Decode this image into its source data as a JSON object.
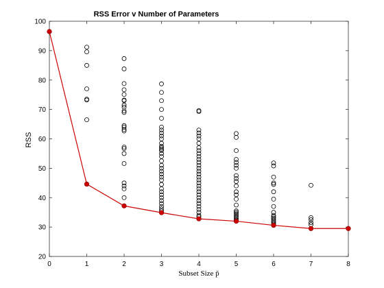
{
  "chart_data": {
    "type": "scatter",
    "title": "RSS Error v Number of Parameters",
    "xlabel": "Subset Size p̃",
    "ylabel": "RSS",
    "xlim": [
      0,
      8
    ],
    "ylim": [
      20,
      100
    ],
    "xticks": [
      "0",
      "1",
      "2",
      "3",
      "4",
      "5",
      "6",
      "7",
      "8"
    ],
    "yticks": [
      "20",
      "30",
      "40",
      "50",
      "60",
      "70",
      "80",
      "90",
      "100"
    ],
    "grid": false,
    "colors": {
      "scatter": "#000000",
      "best": "#cc0000",
      "axis": "#262626"
    },
    "series": [
      {
        "kind": "scatter",
        "marker": "open-circle",
        "points": [
          [
            0,
            96.5
          ],
          [
            1,
            91.2
          ],
          [
            1,
            89.6
          ],
          [
            1,
            85
          ],
          [
            1,
            77
          ],
          [
            1,
            73.5
          ],
          [
            1,
            73.2
          ],
          [
            1,
            66.5
          ],
          [
            1,
            44.6
          ],
          [
            2,
            87.3
          ],
          [
            2,
            83.8
          ],
          [
            2,
            78.8
          ],
          [
            2,
            76.7
          ],
          [
            2,
            75.1
          ],
          [
            2,
            73.2
          ],
          [
            2,
            73
          ],
          [
            2,
            71.5
          ],
          [
            2,
            70.8
          ],
          [
            2,
            69.5
          ],
          [
            2,
            69
          ],
          [
            2,
            64.5
          ],
          [
            2,
            64
          ],
          [
            2,
            63.2
          ],
          [
            2,
            62.7
          ],
          [
            2,
            57.2
          ],
          [
            2,
            56.7
          ],
          [
            2,
            55
          ],
          [
            2,
            51.6
          ],
          [
            2,
            45
          ],
          [
            2,
            44
          ],
          [
            2,
            43
          ],
          [
            2,
            40
          ],
          [
            2,
            37.2
          ],
          [
            3,
            78.7
          ],
          [
            3,
            75.8
          ],
          [
            3,
            73
          ],
          [
            3,
            70
          ],
          [
            3,
            67
          ],
          [
            3,
            64
          ],
          [
            3,
            63
          ],
          [
            3,
            62
          ],
          [
            3,
            61
          ],
          [
            3,
            60
          ],
          [
            3,
            58.5
          ],
          [
            3,
            57.5
          ],
          [
            3,
            57
          ],
          [
            3,
            56.5
          ],
          [
            3,
            56
          ],
          [
            3,
            55
          ],
          [
            3,
            54
          ],
          [
            3,
            52.5
          ],
          [
            3,
            51
          ],
          [
            3,
            50
          ],
          [
            3,
            49
          ],
          [
            3,
            48
          ],
          [
            3,
            47
          ],
          [
            3,
            46
          ],
          [
            3,
            44.5
          ],
          [
            3,
            43
          ],
          [
            3,
            42
          ],
          [
            3,
            41
          ],
          [
            3,
            40
          ],
          [
            3,
            39
          ],
          [
            3,
            38
          ],
          [
            3,
            37
          ],
          [
            3,
            36.2
          ],
          [
            3,
            35.5
          ],
          [
            3,
            34.9
          ],
          [
            4,
            69.6
          ],
          [
            4,
            69.3
          ],
          [
            4,
            63
          ],
          [
            4,
            62
          ],
          [
            4,
            61
          ],
          [
            4,
            60
          ],
          [
            4,
            58.5
          ],
          [
            4,
            57
          ],
          [
            4,
            56
          ],
          [
            4,
            55
          ],
          [
            4,
            54
          ],
          [
            4,
            53
          ],
          [
            4,
            52
          ],
          [
            4,
            51
          ],
          [
            4,
            50
          ],
          [
            4,
            49
          ],
          [
            4,
            48
          ],
          [
            4,
            47
          ],
          [
            4,
            46
          ],
          [
            4,
            45
          ],
          [
            4,
            44
          ],
          [
            4,
            43
          ],
          [
            4,
            42
          ],
          [
            4,
            41
          ],
          [
            4,
            40
          ],
          [
            4,
            39
          ],
          [
            4,
            38
          ],
          [
            4,
            37
          ],
          [
            4,
            36
          ],
          [
            4,
            35
          ],
          [
            4,
            34
          ],
          [
            4,
            33.5
          ],
          [
            4,
            32.8
          ],
          [
            5,
            61.8
          ],
          [
            5,
            60.5
          ],
          [
            5,
            56
          ],
          [
            5,
            53
          ],
          [
            5,
            52
          ],
          [
            5,
            51
          ],
          [
            5,
            50
          ],
          [
            5,
            47.5
          ],
          [
            5,
            46.5
          ],
          [
            5,
            45.5
          ],
          [
            5,
            44
          ],
          [
            5,
            42
          ],
          [
            5,
            41
          ],
          [
            5,
            39.5
          ],
          [
            5,
            37.5
          ],
          [
            5,
            35.5
          ],
          [
            5,
            35
          ],
          [
            5,
            34.5
          ],
          [
            5,
            34
          ],
          [
            5,
            33.5
          ],
          [
            5,
            33
          ],
          [
            5,
            32.5
          ],
          [
            5,
            32.2
          ],
          [
            5,
            32
          ],
          [
            6,
            51.8
          ],
          [
            6,
            50.8
          ],
          [
            6,
            47
          ],
          [
            6,
            45
          ],
          [
            6,
            44.5
          ],
          [
            6,
            42
          ],
          [
            6,
            39.5
          ],
          [
            6,
            37
          ],
          [
            6,
            35
          ],
          [
            6,
            34
          ],
          [
            6,
            33.5
          ],
          [
            6,
            33
          ],
          [
            6,
            32.5
          ],
          [
            6,
            32
          ],
          [
            6,
            31.5
          ],
          [
            6,
            31
          ],
          [
            6,
            30.6
          ],
          [
            7,
            44.2
          ],
          [
            7,
            33.2
          ],
          [
            7,
            32.5
          ],
          [
            7,
            31.5
          ],
          [
            7,
            30.8
          ],
          [
            7,
            29.5
          ],
          [
            8,
            29.5
          ]
        ]
      },
      {
        "kind": "line",
        "marker": "filled-circle",
        "points": [
          [
            0,
            96.5
          ],
          [
            1,
            44.6
          ],
          [
            2,
            37.2
          ],
          [
            3,
            34.9
          ],
          [
            4,
            32.8
          ],
          [
            5,
            32
          ],
          [
            6,
            30.6
          ],
          [
            7,
            29.5
          ],
          [
            8,
            29.5
          ]
        ]
      }
    ]
  }
}
